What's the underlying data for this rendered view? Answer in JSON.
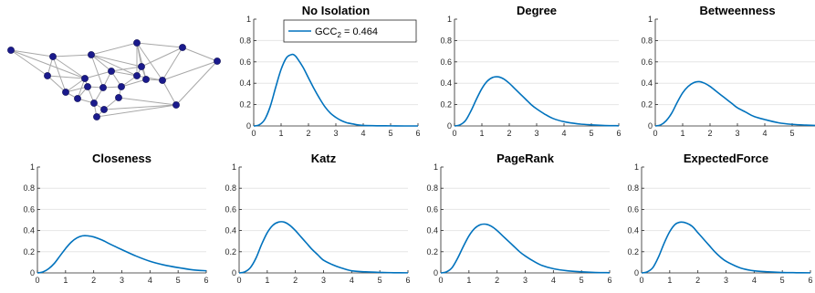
{
  "chart_data": {
    "type": "line",
    "x_ticks": [
      0,
      1,
      2,
      3,
      4,
      5,
      6
    ],
    "y_ticks": [
      0,
      0.2,
      0.4,
      0.6,
      0.8,
      1
    ],
    "y_tick_labels": [
      "0",
      "0.2",
      "0.4",
      "0.6",
      "0.8",
      "1"
    ],
    "xlim": [
      0,
      6
    ],
    "ylim": [
      0,
      1
    ],
    "grid": "horizontal",
    "line_color": "#0072BD",
    "legend": {
      "panel": "No Isolation",
      "label": "GCC",
      "subscript": "2",
      "value_text": " = 0.464",
      "location": "top"
    },
    "panels": [
      {
        "title": "No Isolation",
        "x": [
          0,
          0.2,
          0.4,
          0.6,
          0.8,
          1.0,
          1.2,
          1.4,
          1.5,
          1.6,
          1.8,
          2.0,
          2.2,
          2.4,
          2.6,
          2.8,
          3.0,
          3.2,
          3.4,
          3.6,
          3.8,
          4.0,
          4.5,
          5.0,
          5.5,
          6.0
        ],
        "y": [
          0,
          0.01,
          0.06,
          0.18,
          0.36,
          0.53,
          0.64,
          0.67,
          0.66,
          0.63,
          0.55,
          0.45,
          0.35,
          0.26,
          0.18,
          0.12,
          0.08,
          0.05,
          0.03,
          0.02,
          0.01,
          0.005,
          0.002,
          0.001,
          0,
          0
        ]
      },
      {
        "title": "Degree",
        "x": [
          0,
          0.2,
          0.4,
          0.6,
          0.8,
          1.0,
          1.2,
          1.4,
          1.6,
          1.8,
          2.0,
          2.2,
          2.4,
          2.6,
          2.8,
          3.0,
          3.3,
          3.6,
          4.0,
          4.5,
          5.0,
          5.5,
          6.0
        ],
        "y": [
          0,
          0.01,
          0.05,
          0.14,
          0.25,
          0.35,
          0.42,
          0.455,
          0.46,
          0.44,
          0.4,
          0.35,
          0.3,
          0.25,
          0.2,
          0.16,
          0.11,
          0.07,
          0.04,
          0.02,
          0.01,
          0.004,
          0.002
        ]
      },
      {
        "title": "Betweenness",
        "x": [
          0,
          0.2,
          0.4,
          0.6,
          0.8,
          1.0,
          1.2,
          1.4,
          1.6,
          1.8,
          2.0,
          2.2,
          2.4,
          2.6,
          2.8,
          3.0,
          3.3,
          3.6,
          4.0,
          4.5,
          5.0,
          5.5,
          6.0
        ],
        "y": [
          0,
          0.01,
          0.05,
          0.12,
          0.22,
          0.31,
          0.37,
          0.405,
          0.415,
          0.4,
          0.37,
          0.33,
          0.29,
          0.25,
          0.21,
          0.17,
          0.13,
          0.09,
          0.06,
          0.03,
          0.015,
          0.008,
          0.004
        ]
      },
      {
        "title": "Closeness",
        "x": [
          0,
          0.2,
          0.4,
          0.6,
          0.8,
          1.0,
          1.2,
          1.4,
          1.6,
          1.8,
          2.0,
          2.3,
          2.6,
          3.0,
          3.5,
          4.0,
          4.5,
          5.0,
          5.5,
          6.0
        ],
        "y": [
          0,
          0.01,
          0.04,
          0.09,
          0.16,
          0.23,
          0.29,
          0.33,
          0.35,
          0.35,
          0.34,
          0.31,
          0.27,
          0.22,
          0.16,
          0.11,
          0.075,
          0.05,
          0.03,
          0.02
        ]
      },
      {
        "title": "Katz",
        "x": [
          0,
          0.2,
          0.4,
          0.6,
          0.8,
          1.0,
          1.2,
          1.4,
          1.6,
          1.8,
          2.0,
          2.2,
          2.4,
          2.6,
          2.8,
          3.0,
          3.3,
          3.6,
          4.0,
          4.5,
          5.0,
          5.5,
          6.0
        ],
        "y": [
          0,
          0.01,
          0.05,
          0.14,
          0.27,
          0.38,
          0.45,
          0.48,
          0.48,
          0.45,
          0.4,
          0.34,
          0.28,
          0.22,
          0.17,
          0.12,
          0.08,
          0.05,
          0.02,
          0.01,
          0.005,
          0.002,
          0.001
        ]
      },
      {
        "title": "PageRank",
        "x": [
          0,
          0.2,
          0.4,
          0.6,
          0.8,
          1.0,
          1.2,
          1.4,
          1.6,
          1.8,
          2.0,
          2.2,
          2.4,
          2.6,
          2.8,
          3.0,
          3.3,
          3.6,
          4.0,
          4.5,
          5.0,
          5.5,
          6.0
        ],
        "y": [
          0,
          0.01,
          0.05,
          0.14,
          0.25,
          0.35,
          0.42,
          0.455,
          0.46,
          0.44,
          0.4,
          0.35,
          0.3,
          0.25,
          0.2,
          0.16,
          0.11,
          0.07,
          0.04,
          0.02,
          0.01,
          0.004,
          0.002
        ]
      },
      {
        "title": "ExpectedForce",
        "x": [
          0,
          0.2,
          0.4,
          0.6,
          0.8,
          1.0,
          1.2,
          1.4,
          1.6,
          1.8,
          2.0,
          2.2,
          2.4,
          2.6,
          2.8,
          3.0,
          3.3,
          3.6,
          4.0,
          4.5,
          5.0,
          5.5,
          6.0
        ],
        "y": [
          0,
          0.01,
          0.05,
          0.15,
          0.28,
          0.39,
          0.46,
          0.48,
          0.47,
          0.44,
          0.38,
          0.32,
          0.26,
          0.2,
          0.15,
          0.11,
          0.07,
          0.04,
          0.02,
          0.01,
          0.004,
          0.002,
          0.001
        ]
      }
    ]
  },
  "network": {
    "node_color": "#1a1a8c",
    "edge_color": "#a8a8a8"
  }
}
